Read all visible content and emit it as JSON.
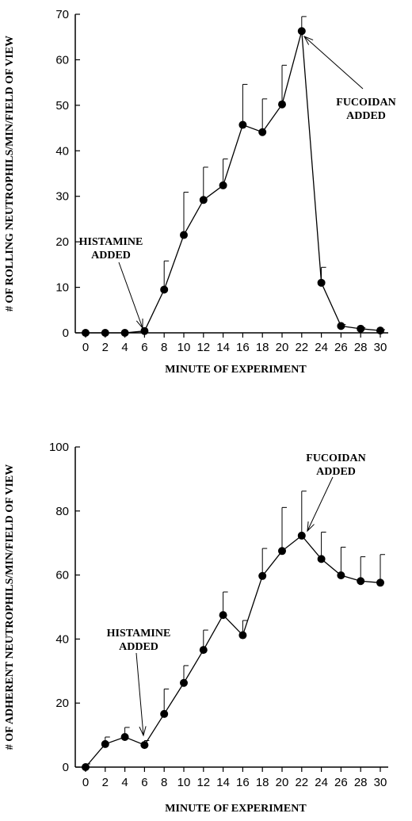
{
  "figure": {
    "panels": [
      {
        "id": "rolling"
      },
      {
        "id": "adherent"
      }
    ]
  },
  "chart_data": [
    {
      "type": "line",
      "xlabel": "MINUTE OF EXPERIMENT",
      "ylabel": "# OF ROLLING NEUTROPHILS/MIN/FIELD OF VIEW",
      "xlim": [
        -1,
        31
      ],
      "ylim": [
        0,
        70
      ],
      "x_ticks": [
        0,
        2,
        4,
        6,
        8,
        10,
        12,
        14,
        16,
        18,
        20,
        22,
        24,
        26,
        28,
        30
      ],
      "y_ticks": [
        0,
        10,
        20,
        30,
        40,
        50,
        60,
        70
      ],
      "grid": false,
      "series": [
        {
          "x": [
            0,
            2,
            4,
            6,
            8,
            10,
            12,
            14,
            16,
            18,
            20,
            22,
            24,
            26,
            28,
            30
          ],
          "y": [
            0,
            0,
            0,
            0.4,
            9.5,
            21.5,
            29.2,
            32.4,
            45.7,
            44.1,
            50.2,
            66.3,
            11.0,
            1.5,
            0.9,
            0.5
          ],
          "error_upper": [
            0,
            0,
            0,
            0,
            6.3,
            9.4,
            7.2,
            5.8,
            8.9,
            7.3,
            8.6,
            3.2,
            3.4,
            0.3,
            0.2,
            0.2
          ]
        }
      ],
      "annotations": [
        {
          "lines": [
            "HISTAMINE",
            "ADDED"
          ],
          "x": 6,
          "y": 0.4
        },
        {
          "lines": [
            "FUCOIDAN",
            "ADDED"
          ],
          "x": 22,
          "y": 66.3
        }
      ]
    },
    {
      "type": "line",
      "xlabel": "MINUTE OF EXPERIMENT",
      "ylabel": "# OF ADHERENT NEUTROPHILS/MIN/FIELD OF VIEW",
      "xlim": [
        -1,
        31
      ],
      "ylim": [
        0,
        100
      ],
      "x_ticks": [
        0,
        2,
        4,
        6,
        8,
        10,
        12,
        14,
        16,
        18,
        20,
        22,
        24,
        26,
        28,
        30
      ],
      "y_ticks": [
        0,
        20,
        40,
        60,
        80,
        100
      ],
      "grid": false,
      "series": [
        {
          "x": [
            0,
            2,
            4,
            6,
            8,
            10,
            12,
            14,
            16,
            18,
            20,
            22,
            24,
            26,
            28,
            30
          ],
          "y": [
            0,
            7.2,
            9.4,
            6.9,
            16.6,
            26.3,
            36.6,
            47.5,
            41.2,
            59.7,
            67.5,
            72.3,
            65.0,
            59.9,
            58.1,
            57.6
          ],
          "error_upper": [
            1.0,
            2.2,
            3.0,
            1.4,
            7.8,
            5.4,
            6.2,
            7.2,
            4.6,
            8.6,
            13.6,
            13.9,
            8.4,
            8.8,
            7.6,
            8.8
          ]
        }
      ],
      "annotations": [
        {
          "lines": [
            "HISTAMINE",
            "ADDED"
          ],
          "x": 6,
          "y": 6.9
        },
        {
          "lines": [
            "FUCOIDAN",
            "ADDED"
          ],
          "x": 22,
          "y": 72.3
        }
      ]
    }
  ]
}
